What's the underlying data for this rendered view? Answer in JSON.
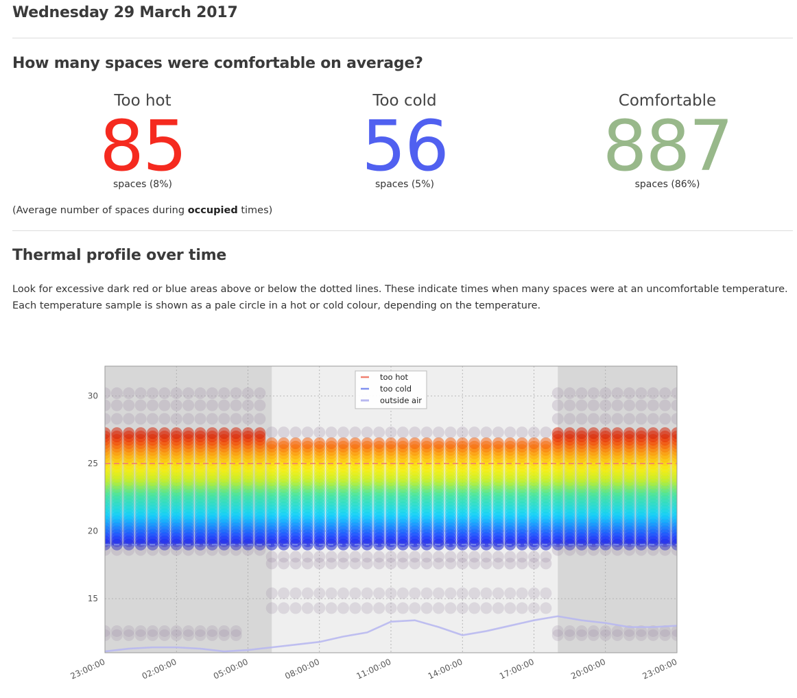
{
  "header": {
    "date": "Wednesday 29 March 2017"
  },
  "comfort": {
    "heading": "How many spaces were comfortable on average?",
    "stats": [
      {
        "label": "Too hot",
        "value": "85",
        "sub": "spaces (8%)",
        "percent": 8,
        "color": "#f52a1f"
      },
      {
        "label": "Too cold",
        "value": "56",
        "sub": "spaces (5%)",
        "percent": 5,
        "color": "#5060f0"
      },
      {
        "label": "Comfortable",
        "value": "887",
        "sub": "spaces (86%)",
        "percent": 86,
        "color": "#98b88a"
      }
    ],
    "note_prefix": "(Average number of spaces during ",
    "note_bold": "occupied",
    "note_suffix": " times)"
  },
  "thermal": {
    "heading": "Thermal profile over time",
    "description_line1": "Look for excessive dark red or blue areas above or below the dotted lines. These indicate times when many spaces were at an uncomfortable temperature.",
    "description_line2": "Each temperature sample is shown as a pale circle in a hot or cold colour, depending on the temperature."
  },
  "chart_data": {
    "type": "scatter",
    "x_ticks": [
      "23:00:00",
      "02:00:00",
      "05:00:00",
      "08:00:00",
      "11:00:00",
      "14:00:00",
      "17:00:00",
      "20:00:00",
      "23:00:00"
    ],
    "x_range_hours": [
      -1,
      23
    ],
    "y_ticks": [
      15,
      20,
      25,
      30
    ],
    "ylim": [
      11,
      32.2
    ],
    "grid": true,
    "legend_position": "top-center",
    "occupied_period": [
      "06:00",
      "18:00"
    ],
    "thresholds": [
      {
        "name": "too hot",
        "value": 25,
        "color": "#f08070",
        "style": "dashed"
      },
      {
        "name": "too cold",
        "value": 19,
        "color": "#8090f0",
        "style": "dashed"
      }
    ],
    "series": [
      {
        "name": "outside air",
        "color": "#b8b8f0",
        "points": [
          {
            "hour": -1,
            "temp": 11.1
          },
          {
            "hour": 0,
            "temp": 11.3
          },
          {
            "hour": 1,
            "temp": 11.4
          },
          {
            "hour": 2,
            "temp": 11.4
          },
          {
            "hour": 3,
            "temp": 11.3
          },
          {
            "hour": 4,
            "temp": 11.1
          },
          {
            "hour": 5,
            "temp": 11.2
          },
          {
            "hour": 6,
            "temp": 11.4
          },
          {
            "hour": 7,
            "temp": 11.6
          },
          {
            "hour": 8,
            "temp": 11.8
          },
          {
            "hour": 9,
            "temp": 12.2
          },
          {
            "hour": 10,
            "temp": 12.5
          },
          {
            "hour": 11,
            "temp": 13.3
          },
          {
            "hour": 12,
            "temp": 13.4
          },
          {
            "hour": 13,
            "temp": 12.9
          },
          {
            "hour": 14,
            "temp": 12.3
          },
          {
            "hour": 15,
            "temp": 12.6
          },
          {
            "hour": 16,
            "temp": 13.0
          },
          {
            "hour": 17,
            "temp": 13.4
          },
          {
            "hour": 18,
            "temp": 13.7
          },
          {
            "hour": 19,
            "temp": 13.4
          },
          {
            "hour": 20,
            "temp": 13.2
          },
          {
            "hour": 21,
            "temp": 12.9
          },
          {
            "hour": 22,
            "temp": 12.9
          },
          {
            "hour": 23,
            "temp": 13.0
          }
        ]
      }
    ],
    "samples": {
      "sample_interval_hours": 0.5,
      "dense_unoccupied": [
        19.0,
        27.4
      ],
      "dense_occupied": [
        19.0,
        26.6
      ],
      "outlier_levels_unoccupied": [
        18.6,
        28.3,
        29.3,
        30.2
      ],
      "outlier_levels_occupied": [
        17.6,
        18.1,
        27.3
      ],
      "sparse_levels_occupied": [
        15.4,
        14.3
      ],
      "low_band_unoccupied": [
        12.3,
        12.6
      ]
    }
  }
}
